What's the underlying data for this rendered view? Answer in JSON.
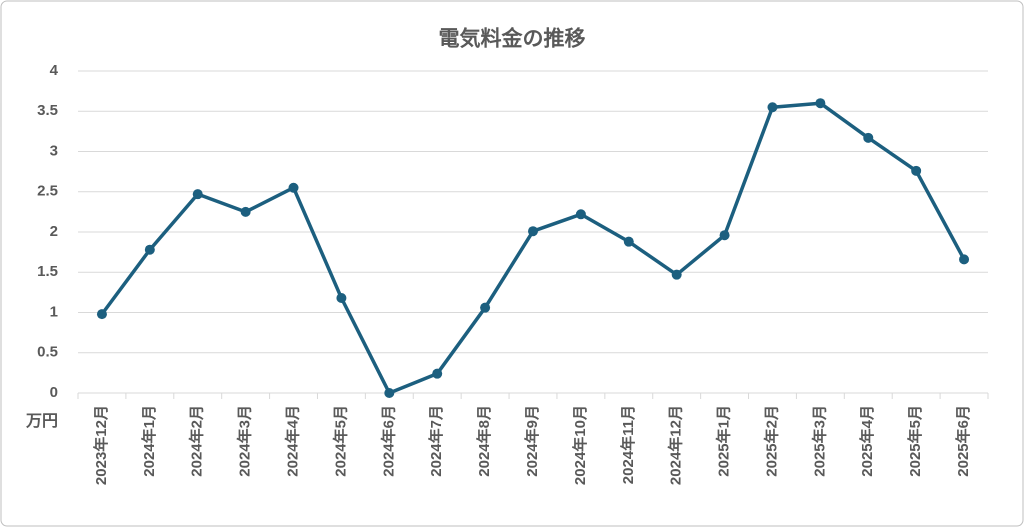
{
  "chart_data": {
    "type": "line",
    "title": "電気料金の推移",
    "y_unit_label": "万円",
    "categories": [
      "2023年12月",
      "2024年1月",
      "2024年2月",
      "2024年3月",
      "2024年4月",
      "2024年5月",
      "2024年6月",
      "2024年7月",
      "2024年8月",
      "2024年9月",
      "2024年10月",
      "2024年11月",
      "2024年12月",
      "2025年1月",
      "2025年2月",
      "2025年3月",
      "2025年4月",
      "2025年5月",
      "2025年6月"
    ],
    "series": [
      {
        "name": "電気料金",
        "color": "#1c5f7f",
        "values": [
          0.98,
          1.78,
          2.47,
          2.25,
          2.55,
          1.18,
          0,
          0.24,
          1.06,
          2.01,
          2.22,
          1.88,
          1.47,
          1.96,
          3.55,
          3.6,
          3.17,
          2.76,
          1.66
        ]
      }
    ],
    "ylim": [
      0,
      4
    ],
    "yticks": [
      0,
      0.5,
      1,
      1.5,
      2,
      2.5,
      3,
      3.5,
      4
    ],
    "grid": true
  }
}
